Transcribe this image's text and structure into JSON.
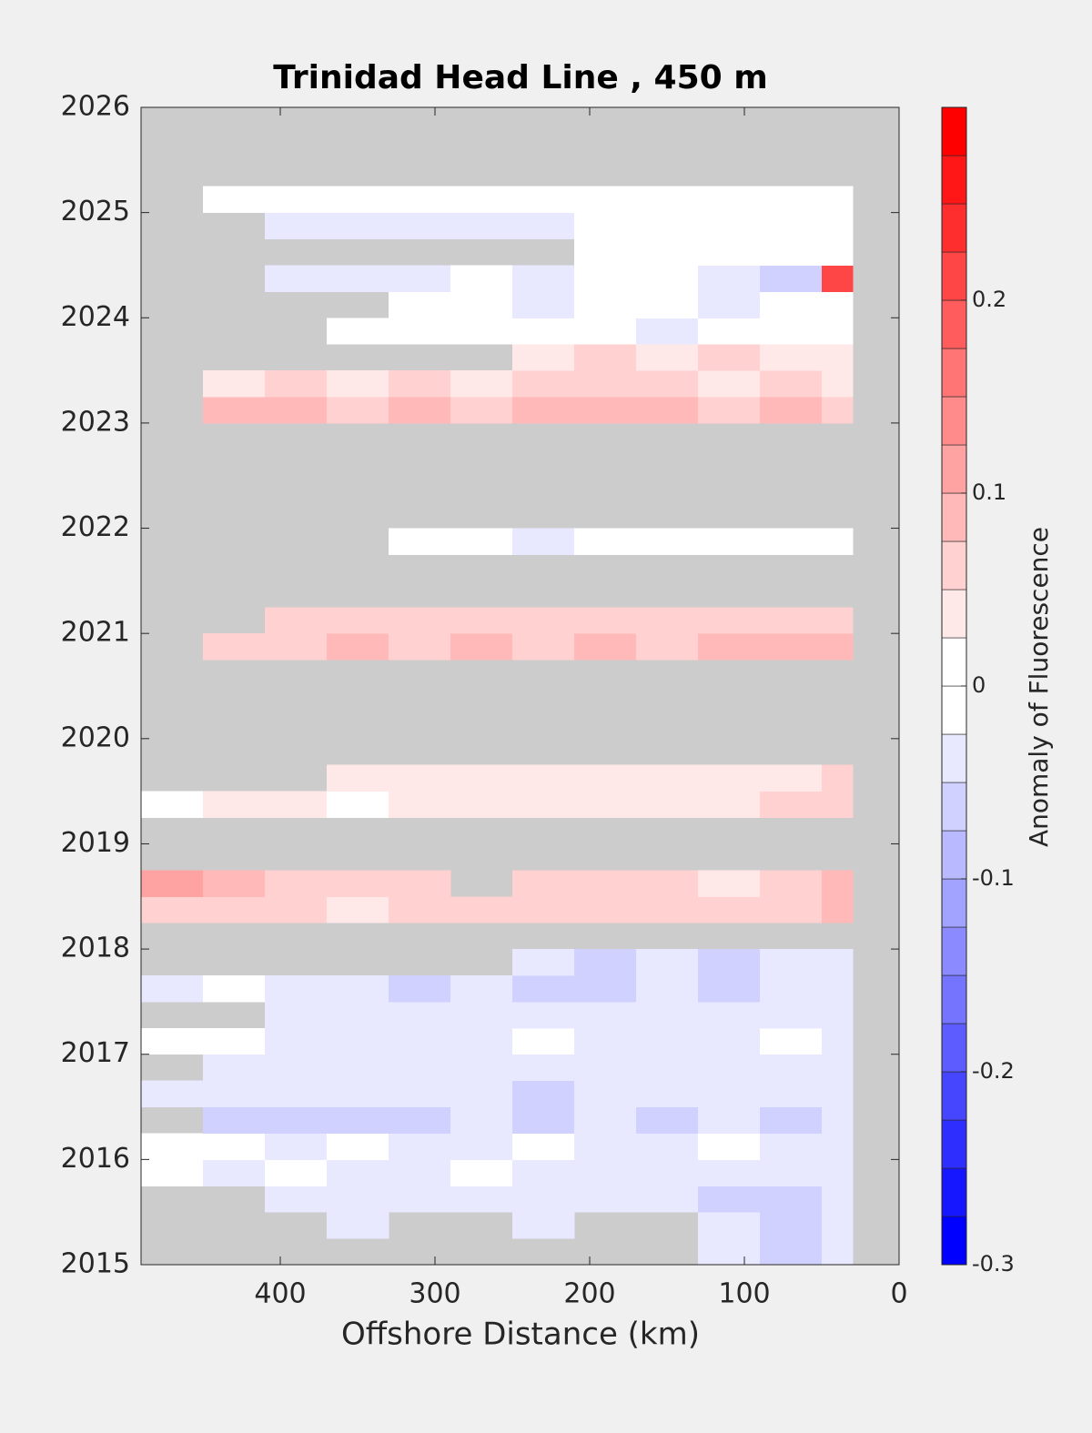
{
  "chart_data": {
    "type": "heatmap",
    "title": "Trinidad Head Line , 450 m",
    "x_label": "Offshore Distance (km)",
    "xlim": [
      490,
      0
    ],
    "xticks": [
      400,
      300,
      200,
      100,
      0
    ],
    "ylim": [
      2015,
      2026
    ],
    "yticks": [
      2015,
      2016,
      2017,
      2018,
      2019,
      2020,
      2021,
      2022,
      2023,
      2024,
      2025,
      2026
    ],
    "missing_color": "#cccccc",
    "x_edges": [
      490,
      450,
      410,
      370,
      330,
      290,
      250,
      210,
      170,
      130,
      90,
      50,
      30
    ],
    "y_edges": [
      2015,
      2015.25,
      2015.5,
      2015.75,
      2016,
      2016.25,
      2016.5,
      2016.75,
      2017,
      2017.25,
      2017.5,
      2017.75,
      2018,
      2018.25,
      2018.5,
      2018.75,
      2019,
      2019.25,
      2019.5,
      2019.75,
      2020,
      2020.25,
      2020.5,
      2020.75,
      2021,
      2021.25,
      2021.5,
      2021.75,
      2022,
      2022.25,
      2022.5,
      2022.75,
      2023,
      2023.25,
      2023.5,
      2023.75,
      2024,
      2024.25,
      2024.5,
      2024.75,
      2025,
      2025.25,
      2025.5,
      2025.75,
      2026
    ],
    "values": [
      [
        null,
        null,
        null,
        null,
        null,
        null,
        null,
        null,
        null,
        -0.03,
        -0.06,
        -0.04
      ],
      [
        null,
        null,
        null,
        -0.03,
        null,
        null,
        -0.04,
        null,
        null,
        -0.05,
        -0.07,
        -0.05
      ],
      [
        null,
        null,
        -0.03,
        -0.04,
        -0.05,
        -0.04,
        -0.03,
        -0.04,
        -0.05,
        -0.06,
        -0.07,
        -0.05
      ],
      [
        0,
        -0.03,
        0,
        -0.04,
        -0.03,
        0,
        -0.03,
        -0.04,
        -0.03,
        -0.04,
        -0.05,
        -0.04
      ],
      [
        0,
        0,
        -0.03,
        0,
        -0.03,
        -0.04,
        0,
        -0.03,
        -0.03,
        0,
        -0.03,
        -0.03
      ],
      [
        null,
        -0.06,
        -0.07,
        -0.06,
        -0.06,
        -0.05,
        -0.06,
        -0.05,
        -0.06,
        -0.05,
        -0.06,
        -0.05
      ],
      [
        -0.04,
        -0.04,
        -0.05,
        -0.04,
        -0.05,
        -0.04,
        -0.06,
        -0.05,
        -0.04,
        -0.05,
        -0.04,
        -0.04
      ],
      [
        null,
        -0.03,
        -0.04,
        -0.03,
        -0.05,
        -0.04,
        -0.03,
        -0.04,
        -0.03,
        -0.04,
        -0.03,
        -0.03
      ],
      [
        0,
        0,
        -0.03,
        -0.04,
        -0.03,
        -0.04,
        0,
        -0.03,
        -0.04,
        -0.03,
        0,
        -0.03
      ],
      [
        null,
        null,
        -0.04,
        -0.05,
        -0.04,
        -0.03,
        -0.05,
        -0.04,
        -0.05,
        -0.04,
        -0.05,
        -0.04
      ],
      [
        -0.04,
        0,
        -0.03,
        -0.05,
        -0.06,
        -0.05,
        -0.06,
        -0.07,
        -0.05,
        -0.06,
        -0.05,
        -0.04
      ],
      [
        null,
        null,
        null,
        null,
        null,
        null,
        -0.05,
        -0.06,
        -0.05,
        -0.06,
        -0.05,
        -0.05
      ],
      [
        null,
        null,
        null,
        null,
        null,
        null,
        null,
        null,
        null,
        null,
        null,
        null
      ],
      [
        0.07,
        0.06,
        0.05,
        0.04,
        0.05,
        0.06,
        0.06,
        0.07,
        0.06,
        0.07,
        0.07,
        0.08
      ],
      [
        0.12,
        0.09,
        0.07,
        0.06,
        0.07,
        null,
        0.06,
        0.05,
        0.07,
        0.04,
        0.06,
        0.08
      ],
      [
        null,
        null,
        null,
        null,
        null,
        null,
        null,
        null,
        null,
        null,
        null,
        null
      ],
      [
        null,
        null,
        null,
        null,
        null,
        null,
        null,
        null,
        null,
        null,
        null,
        null
      ],
      [
        0,
        0.03,
        0.03,
        0,
        0.04,
        0.03,
        0.04,
        0.03,
        0.04,
        0.03,
        0.05,
        0.06
      ],
      [
        null,
        null,
        null,
        0.03,
        0.04,
        0.03,
        0.04,
        0.03,
        0.04,
        0.03,
        0.04,
        0.05
      ],
      [
        null,
        null,
        null,
        null,
        null,
        null,
        null,
        null,
        null,
        null,
        null,
        null
      ],
      [
        null,
        null,
        null,
        null,
        null,
        null,
        null,
        null,
        null,
        null,
        null,
        null
      ],
      [
        null,
        null,
        null,
        null,
        null,
        null,
        null,
        null,
        null,
        null,
        null,
        null
      ],
      [
        null,
        null,
        null,
        null,
        null,
        null,
        null,
        null,
        null,
        null,
        null,
        null
      ],
      [
        null,
        0.06,
        0.07,
        0.08,
        0.07,
        0.08,
        0.07,
        0.08,
        0.07,
        0.08,
        0.08,
        0.09
      ],
      [
        null,
        null,
        0.06,
        0.05,
        0.06,
        0.07,
        0.07,
        0.06,
        0.05,
        0.06,
        0.05,
        0.06
      ],
      [
        null,
        null,
        null,
        null,
        null,
        null,
        null,
        null,
        null,
        null,
        null,
        null
      ],
      [
        null,
        null,
        null,
        null,
        null,
        null,
        null,
        null,
        null,
        null,
        null,
        null
      ],
      [
        null,
        null,
        null,
        null,
        0,
        0,
        -0.03,
        0,
        0,
        0,
        0,
        0
      ],
      [
        null,
        null,
        null,
        null,
        null,
        null,
        null,
        null,
        null,
        null,
        null,
        null
      ],
      [
        null,
        null,
        null,
        null,
        null,
        null,
        null,
        null,
        null,
        null,
        null,
        null
      ],
      [
        null,
        null,
        null,
        null,
        null,
        null,
        null,
        null,
        null,
        null,
        null,
        null
      ],
      [
        null,
        null,
        null,
        null,
        null,
        null,
        null,
        null,
        null,
        null,
        null,
        null
      ],
      [
        null,
        0.08,
        0.09,
        0.07,
        0.08,
        0.07,
        0.08,
        0.09,
        0.08,
        0.07,
        0.08,
        0.07
      ],
      [
        null,
        0.04,
        0.05,
        0.04,
        0.05,
        0.04,
        0.05,
        0.06,
        0.05,
        0.04,
        0.05,
        0.04
      ],
      [
        null,
        null,
        null,
        null,
        null,
        null,
        0.04,
        0.05,
        0.04,
        0.05,
        0.04,
        0.03
      ],
      [
        null,
        null,
        null,
        0,
        0,
        0,
        0,
        0,
        -0.03,
        0,
        0,
        0
      ],
      [
        null,
        null,
        null,
        null,
        0,
        0,
        -0.03,
        0,
        0,
        -0.03,
        0,
        0
      ],
      [
        null,
        null,
        -0.03,
        -0.03,
        -0.03,
        0,
        -0.03,
        0,
        0,
        -0.03,
        -0.06,
        0.2
      ],
      [
        null,
        null,
        null,
        null,
        null,
        null,
        null,
        0,
        0,
        0,
        0,
        0
      ],
      [
        null,
        null,
        -0.03,
        -0.04,
        -0.03,
        -0.04,
        -0.03,
        0,
        0,
        0,
        0,
        0
      ],
      [
        null,
        0,
        0,
        0,
        0,
        0,
        0,
        0,
        0,
        0,
        0,
        0
      ],
      [
        null,
        null,
        null,
        null,
        null,
        null,
        null,
        null,
        null,
        null,
        null,
        null
      ],
      [
        null,
        null,
        null,
        null,
        null,
        null,
        null,
        null,
        null,
        null,
        null,
        null
      ],
      [
        null,
        null,
        null,
        null,
        null,
        null,
        null,
        null,
        null,
        null,
        null,
        null
      ]
    ],
    "colorbar": {
      "label": "Anomaly of Fluorescence",
      "levels": [
        -0.3,
        -0.275,
        -0.25,
        -0.225,
        -0.2,
        -0.175,
        -0.15,
        -0.125,
        -0.1,
        -0.075,
        -0.05,
        -0.025,
        0,
        0.025,
        0.05,
        0.075,
        0.1,
        0.125,
        0.15,
        0.175,
        0.2,
        0.225,
        0.25,
        0.275,
        0.3
      ],
      "ticks": [
        -0.3,
        -0.2,
        -0.1,
        0,
        0.1,
        0.2
      ]
    }
  }
}
